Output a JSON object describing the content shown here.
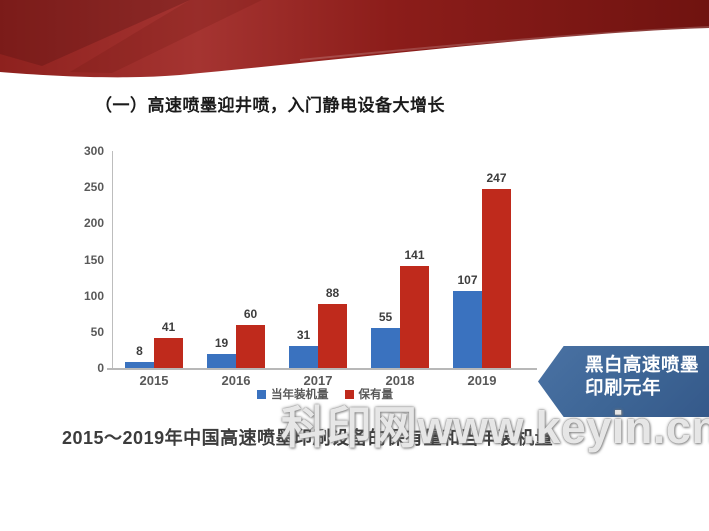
{
  "title": {
    "text": "（一）高速喷墨迎井喷，入门静电设备大增长"
  },
  "chart_data": {
    "type": "bar",
    "title": "",
    "categories": [
      "2015",
      "2016",
      "2017",
      "2018",
      "2019"
    ],
    "series": [
      {
        "name": "当年装机量",
        "color": "#3a72bf",
        "values": [
          8,
          19,
          31,
          55,
          107
        ]
      },
      {
        "name": "保有量",
        "color": "#bf2a1c",
        "values": [
          41,
          60,
          88,
          141,
          247
        ]
      }
    ],
    "xlabel": "",
    "ylabel": "",
    "ylim": [
      0,
      300
    ],
    "ytick_step": 50,
    "grid": false,
    "legend_position": "bottom",
    "value_labels": true
  },
  "badge": {
    "line1": "黑白高速喷墨",
    "line2": "印刷元年",
    "color": "#3d6595"
  },
  "watermark": {
    "text": "科印网www.keyin.cn"
  },
  "caption": {
    "text": "2015～2019年中国高速喷墨印刷设备的保有量和当年装机量"
  },
  "colors": {
    "ribbon_red_light": "#a53431",
    "ribbon_red_dark": "#701310",
    "axis_gray": "#bdbdbd",
    "text_gray": "#595959"
  }
}
